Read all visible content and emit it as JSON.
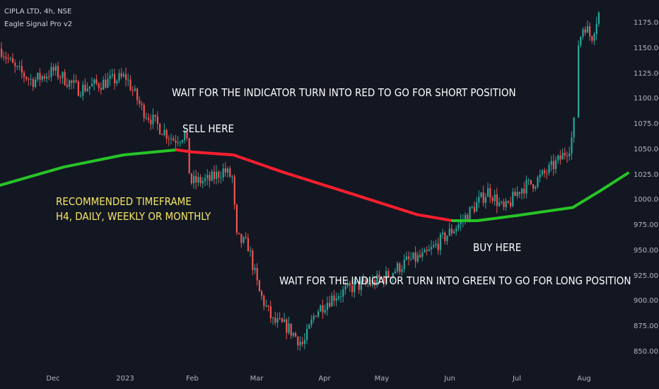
{
  "header": {
    "symbol_line": "CIPLA LTD, 4h, NSE",
    "indicator_name": "Eagle Signal Pro v2"
  },
  "annotations": {
    "short_instruction": "WAIT FOR THE INDICATOR TURN INTO RED TO GO FOR SHORT POSITION",
    "sell_here": "SELL HERE",
    "recommended_line1": "RECOMMENDED TIMEFRAME",
    "recommended_line2": "H4, DAILY, WEEKLY OR MONTHLY",
    "buy_here": "BUY HERE",
    "long_instruction": "WAIT FOR THE INDICATOR TURN INTO GREEN TO GO FOR LONG POSITION"
  },
  "colors": {
    "background": "#131722",
    "bull_candle": "#26a69a",
    "bear_candle": "#ef5350",
    "indicator_bullish": "#27c427",
    "indicator_bearish": "#ff1f2e",
    "annotation_white": "#ffffff",
    "annotation_yellow": "#f5e663",
    "axis_text": "#b2b5be"
  },
  "chart_data": {
    "type": "candlestick",
    "symbol": "CIPLA LTD",
    "timeframe": "4h",
    "exchange": "NSE",
    "y_axis": {
      "ticks": [
        "850.00",
        "875.00",
        "900.00",
        "925.00",
        "950.00",
        "975.00",
        "1000.00",
        "1025.00",
        "1050.00",
        "1075.00",
        "1100.00",
        "1125.00",
        "1150.00",
        "1175.00"
      ],
      "range": [
        838,
        1200
      ]
    },
    "x_axis": {
      "ticks": [
        "Dec",
        "2023",
        "Feb",
        "Mar",
        "Apr",
        "May",
        "Jun",
        "Jul",
        "Aug"
      ]
    },
    "price_path": [
      {
        "t": "Nov",
        "close": 1150
      },
      {
        "t": "Nov",
        "close": 1130
      },
      {
        "t": "Dec",
        "close": 1118
      },
      {
        "t": "Dec",
        "close": 1128
      },
      {
        "t": "Dec",
        "close": 1110
      },
      {
        "t": "2023",
        "close": 1122
      },
      {
        "t": "Jan",
        "close": 1090
      },
      {
        "t": "Jan",
        "close": 1072
      },
      {
        "t": "Jan",
        "close": 1060
      },
      {
        "t": "Feb",
        "close": 1066
      },
      {
        "t": "Feb",
        "close": 1018
      },
      {
        "t": "Feb",
        "close": 1020
      },
      {
        "t": "Feb",
        "close": 1030
      },
      {
        "t": "Feb",
        "close": 1022
      },
      {
        "t": "Mar",
        "close": 963
      },
      {
        "t": "Mar",
        "close": 955
      },
      {
        "t": "Mar",
        "close": 910
      },
      {
        "t": "Mar",
        "close": 880
      },
      {
        "t": "Mar",
        "close": 875
      },
      {
        "t": "Mar",
        "close": 857
      },
      {
        "t": "Apr",
        "close": 890
      },
      {
        "t": "Apr",
        "close": 905
      },
      {
        "t": "Apr",
        "close": 915
      },
      {
        "t": "May",
        "close": 918
      },
      {
        "t": "May",
        "close": 925
      },
      {
        "t": "May",
        "close": 940
      },
      {
        "t": "Jun",
        "close": 945
      },
      {
        "t": "Jun",
        "close": 962
      },
      {
        "t": "Jun",
        "close": 978
      },
      {
        "t": "Jun",
        "close": 1010
      },
      {
        "t": "Jun",
        "close": 990
      },
      {
        "t": "Jul",
        "close": 1012
      },
      {
        "t": "Jul",
        "close": 1018
      },
      {
        "t": "Jul",
        "close": 1030
      },
      {
        "t": "Jul",
        "close": 1040
      },
      {
        "t": "Jul",
        "close": 1055
      },
      {
        "t": "Jul",
        "close": 1078
      },
      {
        "t": "Aug",
        "close": 1150
      },
      {
        "t": "Aug",
        "close": 1175
      },
      {
        "t": "Aug",
        "close": 1160
      },
      {
        "t": "Aug",
        "close": 1185
      }
    ],
    "indicator": {
      "name": "Eagle Signal Pro v2",
      "values": [
        {
          "t": "Nov",
          "value": 1015,
          "state": "bullish"
        },
        {
          "t": "Dec",
          "value": 1033,
          "state": "bullish"
        },
        {
          "t": "2023",
          "value": 1045,
          "state": "bullish"
        },
        {
          "t": "Jan",
          "value": 1050,
          "state": "bullish"
        },
        {
          "t": "Feb",
          "value": 1048,
          "state": "bearish"
        },
        {
          "t": "Feb",
          "value": 1045,
          "state": "bearish"
        },
        {
          "t": "Mar",
          "value": 1028,
          "state": "bearish"
        },
        {
          "t": "Apr",
          "value": 1006,
          "state": "bearish"
        },
        {
          "t": "May",
          "value": 986,
          "state": "bearish"
        },
        {
          "t": "Jun",
          "value": 980,
          "state": "bearish"
        },
        {
          "t": "Jun",
          "value": 980,
          "state": "bullish"
        },
        {
          "t": "Jul",
          "value": 985,
          "state": "bullish"
        },
        {
          "t": "Aug",
          "value": 993,
          "state": "bullish"
        },
        {
          "t": "Aug",
          "value": 1010,
          "state": "bullish"
        },
        {
          "t": "Aug",
          "value": 1027,
          "state": "bullish"
        }
      ]
    }
  }
}
